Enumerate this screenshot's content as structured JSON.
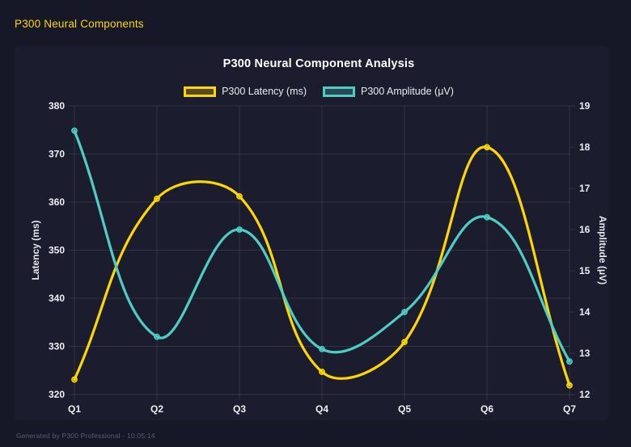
{
  "page": {
    "header_title": "P300 Neural Components",
    "footer_text": "Generated by P300 Professional - 10:05:14",
    "background": "#161827",
    "panel_background": "#1b1d2f",
    "header_color": "#FFD700",
    "footer_color": "#5e5e6c"
  },
  "chart_data": {
    "type": "line",
    "title": "P300 Neural Component Analysis",
    "categories": [
      "Q1",
      "Q2",
      "Q3",
      "Q4",
      "Q5",
      "Q6",
      "Q7"
    ],
    "series": [
      {
        "name": "P300 Latency (ms)",
        "axis": "left",
        "color": "#FFD700",
        "values": [
          323.1,
          360.7,
          361.2,
          324.7,
          330.9,
          371.4,
          321.9
        ]
      },
      {
        "name": "P300 Amplitude (μV)",
        "axis": "right",
        "color": "#4ECDC4",
        "values": [
          18.4,
          13.4,
          16.0,
          13.1,
          14.0,
          16.3,
          12.8
        ]
      }
    ],
    "left_axis": {
      "title": "Latency (ms)",
      "min": 320,
      "max": 380,
      "step": 10
    },
    "right_axis": {
      "title": "Amplitude (μV)",
      "min": 12,
      "max": 19,
      "step": 1
    },
    "legend_position": "top",
    "grid": true,
    "line_tension": 0.4,
    "colors": {
      "grid": "rgba(255,255,255,0.10)",
      "tick_text": "#edeff3",
      "axis_title_text": "#e6e8ec",
      "title_text": "#ffffff"
    }
  }
}
